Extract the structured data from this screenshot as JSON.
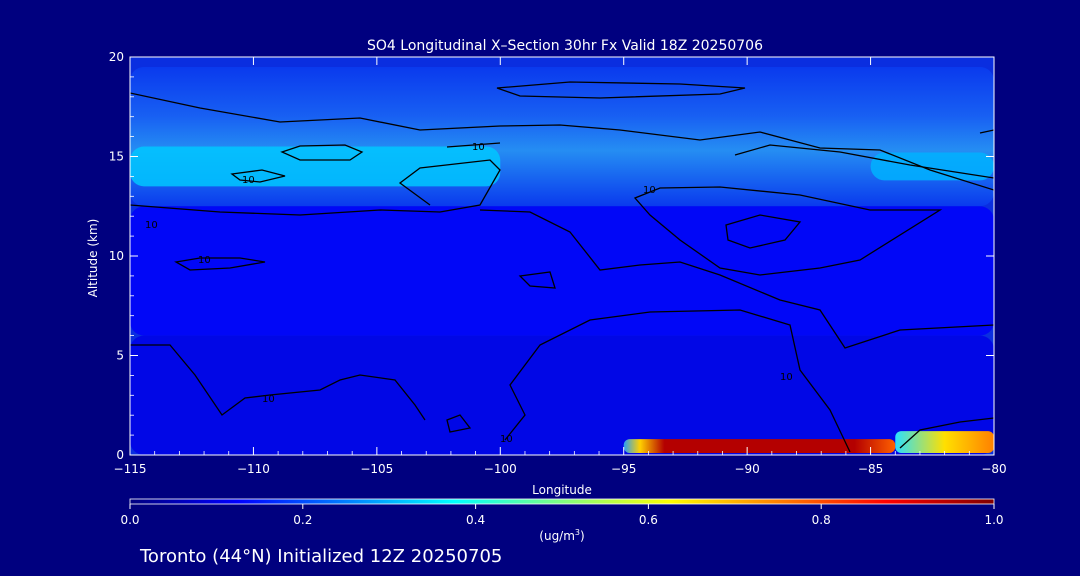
{
  "chart_data": {
    "type": "heatmap",
    "title": "SO4 Longitudinal X–Section 30hr  Fx Valid 18Z 20250706",
    "xlabel": "Longitude",
    "ylabel": "Altitude (km)",
    "xlim": [
      -115,
      -80
    ],
    "ylim": [
      0,
      20
    ],
    "x_ticks": [
      -115,
      -110,
      -105,
      -100,
      -95,
      -90,
      -85,
      -80
    ],
    "x_tick_labels": [
      "−115",
      "−110",
      "−105",
      "−100",
      "−95",
      "−90",
      "−85",
      "−80"
    ],
    "y_ticks": [
      0,
      5,
      10,
      15,
      20
    ],
    "y_tick_labels": [
      "0",
      "5",
      "10",
      "15",
      "20"
    ],
    "colorbar": {
      "label_prefix": "(ug/m",
      "label_sup": "3",
      "label_suffix": ")",
      "range": [
        0.0,
        1.0
      ],
      "ticks": [
        0.0,
        0.2,
        0.4,
        0.6,
        0.8,
        1.0
      ],
      "tick_labels": [
        "0.0",
        "0.2",
        "0.4",
        "0.6",
        "0.8",
        "1.0"
      ],
      "colormap": "jet"
    },
    "field_regions": [
      {
        "name": "stratosphere-band",
        "lon": [
          -115,
          -80
        ],
        "alt": [
          12.5,
          19.5
        ],
        "value": 0.22
      },
      {
        "name": "high-aerosol-layer",
        "lon": [
          -115,
          -100
        ],
        "alt": [
          13.5,
          15.5
        ],
        "value": 0.32
      },
      {
        "name": "high-aerosol-layer-east",
        "lon": [
          -85,
          -80
        ],
        "alt": [
          13.8,
          15.2
        ],
        "value": 0.3
      },
      {
        "name": "mid-troposphere",
        "lon": [
          -115,
          -80
        ],
        "alt": [
          6,
          12.5
        ],
        "value": 0.12
      },
      {
        "name": "lower-troposphere",
        "lon": [
          -115,
          -80
        ],
        "alt": [
          0,
          6
        ],
        "value": 0.1
      },
      {
        "name": "boundary-layer-max",
        "lon": [
          -95,
          -84
        ],
        "alt": [
          0.1,
          0.8
        ],
        "value": 1.0
      },
      {
        "name": "boundary-layer-east",
        "lon": [
          -84,
          -80
        ],
        "alt": [
          0.1,
          1.2
        ],
        "value": 0.55
      }
    ],
    "contour_labels": [
      "10",
      "10",
      "10",
      "10",
      "10",
      "10",
      "10",
      "10"
    ]
  },
  "footer": {
    "location_text": "Toronto (44°N) Initialized 12Z 20250705"
  }
}
